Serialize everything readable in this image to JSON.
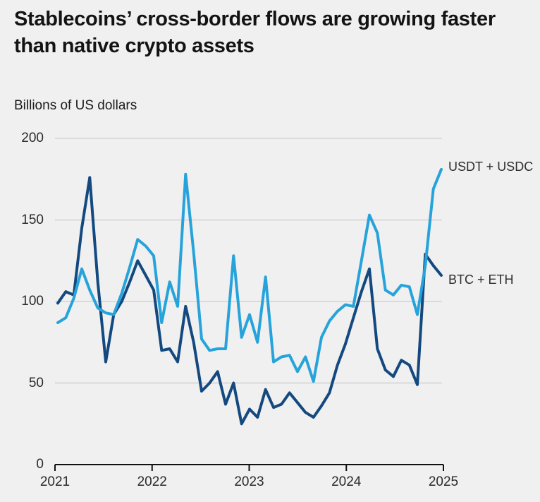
{
  "header": {
    "title": "Stablecoins’ cross-border flows are growing faster than native crypto assets",
    "subtitle": "Billions of US dollars"
  },
  "chart_data": {
    "type": "line",
    "title": "Stablecoins’ cross-border flows are growing faster than native crypto assets",
    "ylabel": "Billions of US dollars",
    "xlabel": "",
    "ylim": [
      0,
      200
    ],
    "yticks": [
      0,
      50,
      100,
      150,
      200
    ],
    "xticks": [
      "2021",
      "2022",
      "2023",
      "2024",
      "2025"
    ],
    "grid": "horizontal",
    "legend_position": "inline-right",
    "months": [
      "Jan 2021",
      "Feb 2021",
      "Mar 2021",
      "Apr 2021",
      "May 2021",
      "Jun 2021",
      "Jul 2021",
      "Aug 2021",
      "Sep 2021",
      "Oct 2021",
      "Nov 2021",
      "Dec 2021",
      "Jan 2022",
      "Feb 2022",
      "Mar 2022",
      "Apr 2022",
      "May 2022",
      "Jun 2022",
      "Jul 2022",
      "Aug 2022",
      "Sep 2022",
      "Oct 2022",
      "Nov 2022",
      "Dec 2022",
      "Jan 2023",
      "Feb 2023",
      "Mar 2023",
      "Apr 2023",
      "May 2023",
      "Jun 2023",
      "Jul 2023",
      "Aug 2023",
      "Sep 2023",
      "Oct 2023",
      "Nov 2023",
      "Dec 2023",
      "Jan 2024",
      "Feb 2024",
      "Mar 2024",
      "Apr 2024",
      "May 2024",
      "Jun 2024",
      "Jul 2024",
      "Aug 2024",
      "Sep 2024",
      "Oct 2024",
      "Nov 2024",
      "Dec 2024",
      "Jan 2025"
    ],
    "series": [
      {
        "name": "USDT + USDC",
        "color": "#27a3db",
        "values": [
          87,
          90,
          102,
          120,
          107,
          96,
          93,
          92,
          105,
          121,
          138,
          134,
          128,
          87,
          112,
          97,
          178,
          130,
          77,
          70,
          71,
          71,
          128,
          78,
          92,
          75,
          115,
          63,
          66,
          67,
          57,
          66,
          51,
          78,
          88,
          94,
          98,
          97,
          125,
          153,
          142,
          107,
          104,
          110,
          109,
          92,
          122,
          169,
          181
        ]
      },
      {
        "name": "BTC + ETH",
        "color": "#14497f",
        "values": [
          99,
          106,
          104,
          145,
          176,
          112,
          63,
          92,
          100,
          112,
          125,
          116,
          107,
          70,
          71,
          63,
          97,
          75,
          45,
          50,
          57,
          37,
          50,
          25,
          34,
          29,
          46,
          35,
          37,
          44,
          38,
          32,
          29,
          36,
          44,
          61,
          74,
          90,
          106,
          120,
          71,
          58,
          54,
          64,
          61,
          49,
          129,
          122,
          116
        ]
      }
    ],
    "colors": {
      "background": "#f0f0f0",
      "gridline": "#dadada",
      "axis": "#111111",
      "text": "#2b2b2b"
    }
  }
}
